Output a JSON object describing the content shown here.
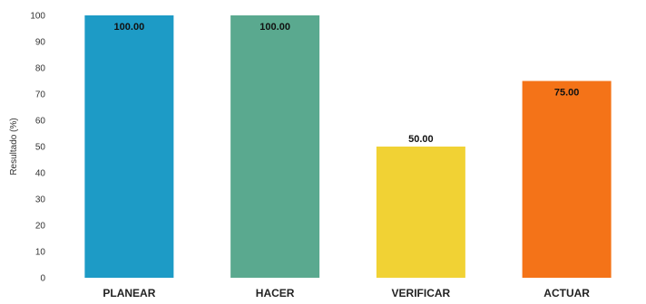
{
  "chart_data": {
    "type": "bar",
    "categories": [
      "PLANEAR",
      "HACER",
      "VERIFICAR",
      "ACTUAR"
    ],
    "values": [
      100,
      100,
      50,
      75
    ],
    "data_labels": [
      "100.00",
      "100.00",
      "50.00",
      "75.00"
    ],
    "colors": [
      "#1d9bc6",
      "#5aa98f",
      "#f1d234",
      "#f47318"
    ],
    "title": "",
    "xlabel": "",
    "ylabel": "Resultado (%)",
    "ylim": [
      0,
      100
    ],
    "yticks": [
      0,
      10,
      20,
      30,
      40,
      50,
      60,
      70,
      80,
      90,
      100
    ],
    "grid": false,
    "legend": "none"
  }
}
